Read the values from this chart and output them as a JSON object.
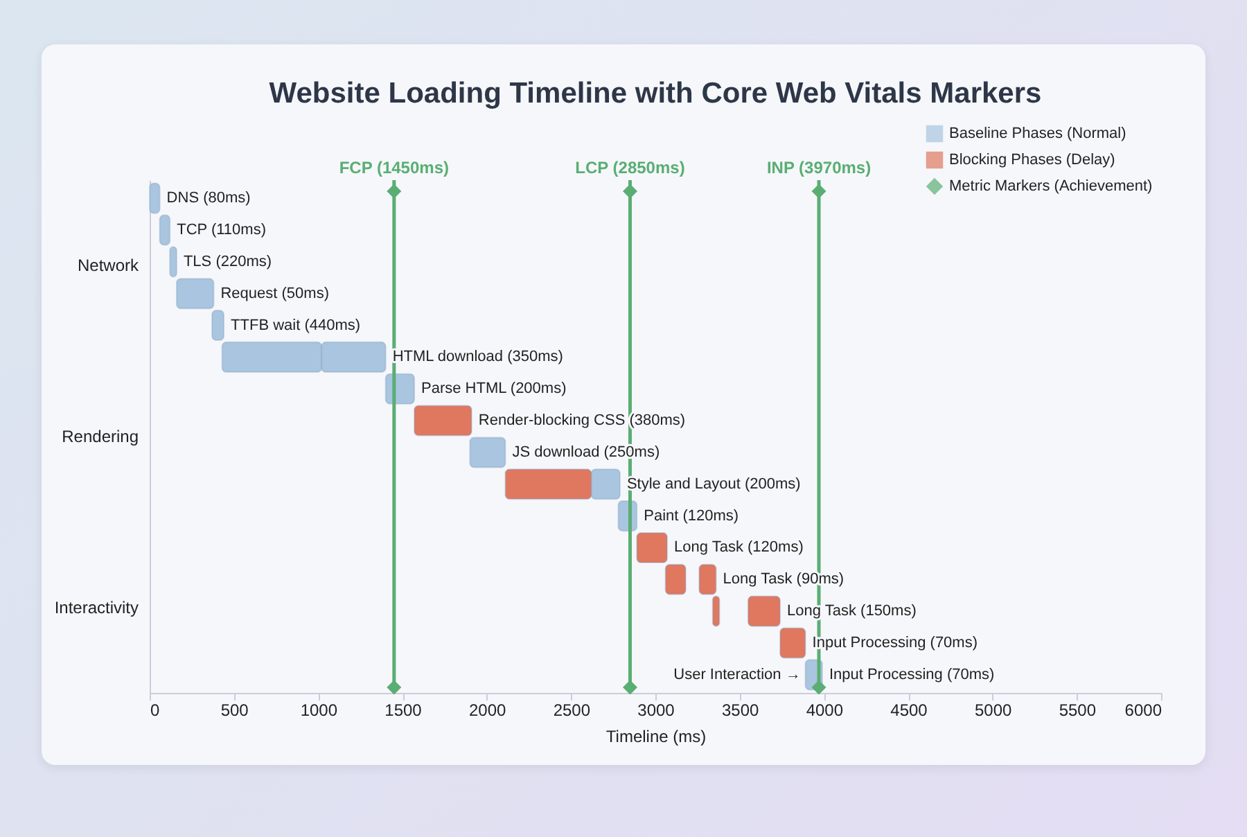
{
  "chart_data": {
    "type": "bar",
    "orientation": "horizontal",
    "title": "Website Loading Timeline with Core Web Vitals Markers",
    "xlabel": "Timeline (ms)",
    "categories": [
      "DNS (80ms)",
      "TCP (110ms)",
      "TLS (220ms)",
      "Request (50ms)",
      "TTFB wait (440ms)",
      "HTML download (350ms)",
      "Parse HTML (200ms)",
      "Render-blocking CSS (380ms)",
      "JS download (250ms)",
      "Style and Layout (200ms)",
      "Paint (120ms)",
      "Long Task (120ms)",
      "Long Task (90ms)",
      "Long Task (150ms)",
      "Input Processing (70ms)",
      "Input Processing (70ms)"
    ],
    "series": [
      {
        "name": "Baseline Phases (Normal)",
        "color": "#a9c5df",
        "base": [
          0,
          60,
          120,
          160,
          370,
          430,
          1400,
          null,
          1900,
          2620,
          2780,
          null,
          null,
          null,
          null,
          3890
        ],
        "values": [
          60,
          60,
          40,
          220,
          70,
          590,
          170,
          null,
          210,
          170,
          110,
          null,
          null,
          null,
          null,
          100
        ]
      },
      {
        "name": "Blocking Phases (Delay)",
        "color": "#e0775f",
        "base": [
          null,
          null,
          null,
          null,
          null,
          null,
          null,
          1570,
          null,
          2110,
          null,
          2890,
          3060,
          3340,
          3740,
          null
        ],
        "values": [
          null,
          null,
          null,
          null,
          null,
          null,
          null,
          340,
          null,
          510,
          null,
          180,
          120,
          40,
          150,
          null
        ]
      },
      {
        "color": "#a9c5df",
        "base": [
          null,
          null,
          null,
          null,
          null,
          1020,
          null,
          null,
          null,
          null,
          null,
          null,
          null,
          null,
          null,
          null
        ],
        "values": [
          null,
          null,
          null,
          null,
          null,
          380,
          null,
          null,
          null,
          null,
          null,
          null,
          null,
          null,
          null,
          null
        ]
      },
      {
        "color": "#e0775f",
        "base": [
          null,
          null,
          null,
          null,
          null,
          null,
          null,
          null,
          null,
          null,
          null,
          null,
          3260,
          3550,
          null,
          null
        ],
        "values": [
          null,
          null,
          null,
          null,
          null,
          null,
          null,
          null,
          null,
          null,
          null,
          null,
          100,
          190,
          null,
          null
        ]
      },
      {
        "name": "Metric Markers (Achievement)",
        "type": "line",
        "color": "#5aae73",
        "marker": "diamond",
        "values": [
          null,
          null,
          null,
          null,
          null,
          null,
          null,
          null,
          null,
          null,
          null,
          null,
          null,
          null,
          null,
          null
        ]
      }
    ],
    "ref_lines": [
      {
        "axis": "x",
        "value": 1450,
        "label": "FCP (1450ms)",
        "color": "#5aae73"
      },
      {
        "axis": "x",
        "value": 2850,
        "label": "LCP (2850ms)",
        "color": "#5aae73"
      },
      {
        "axis": "x",
        "value": 3970,
        "label": "INP (3970ms)",
        "color": "#5aae73"
      }
    ],
    "annotations": [
      "Network",
      "Rendering",
      "Interactivity",
      {
        "text": "User Interaction →",
        "x": 3870,
        "y": "Input Processing (70ms)"
      }
    ],
    "xlim": [
      0,
      6000
    ],
    "xticks": [
      0,
      500,
      1000,
      1500,
      2000,
      2500,
      3000,
      3500,
      4000,
      4500,
      5000,
      5500,
      6000
    ],
    "legend": "top right",
    "grid": false
  }
}
